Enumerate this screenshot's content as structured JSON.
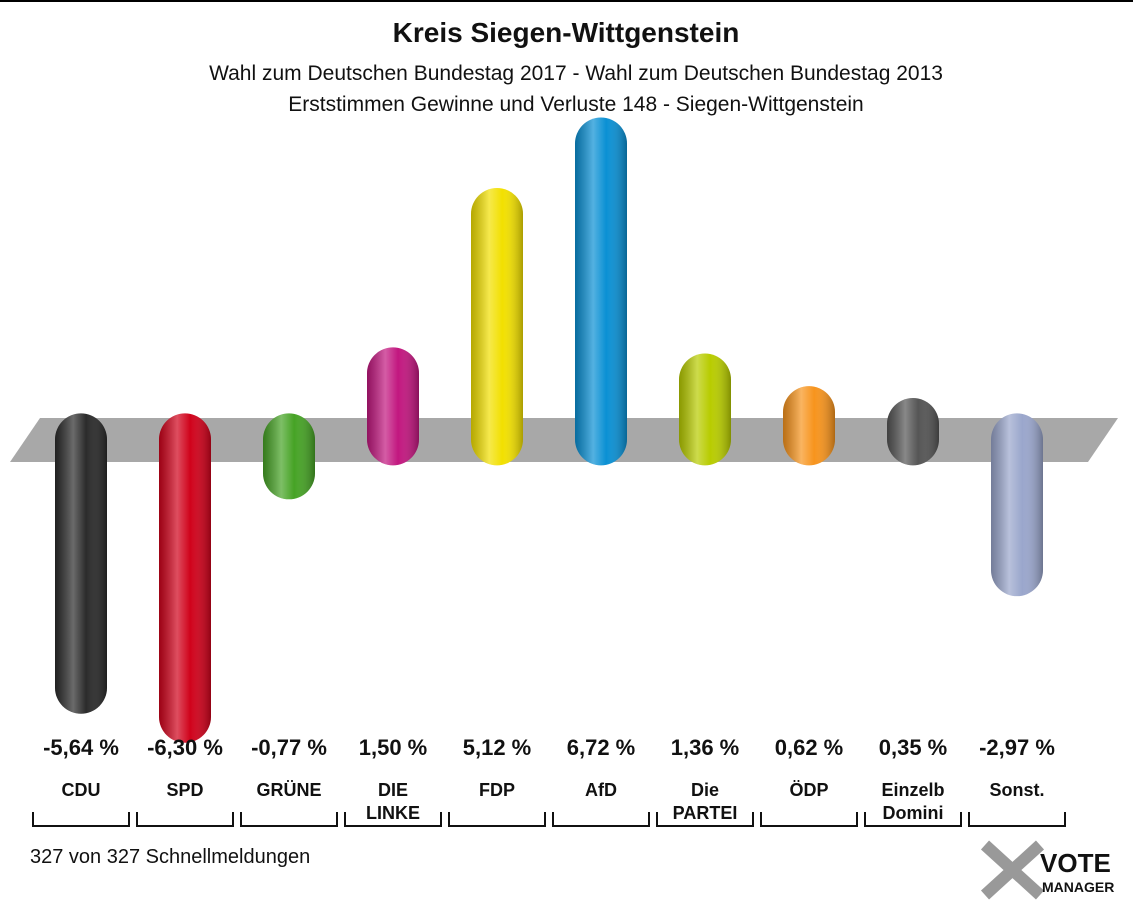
{
  "chart_data": {
    "type": "bar",
    "title": "Kreis Siegen-Wittgenstein",
    "subtitle": "Wahl zum Deutschen Bundestag 2017 - Wahl zum Deutschen Bundestag 2013",
    "subtitle2": "Erststimmen Gewinne und Verluste 148 - Siegen-Wittgenstein",
    "categories": [
      [
        "CDU"
      ],
      [
        "SPD"
      ],
      [
        "GRÜNE"
      ],
      [
        "DIE",
        "LINKE"
      ],
      [
        "FDP"
      ],
      [
        "AfD"
      ],
      [
        "Die",
        "PARTEI"
      ],
      [
        "ÖDP"
      ],
      [
        "Einzelb",
        "Domini"
      ],
      [
        "Sonst."
      ]
    ],
    "values": [
      -5.64,
      -6.3,
      -0.77,
      1.5,
      5.12,
      6.72,
      1.36,
      0.62,
      0.35,
      -2.97
    ],
    "value_labels": [
      "-5,64 %",
      "-6,30 %",
      "-0,77 %",
      "1,50 %",
      "5,12 %",
      "6,72 %",
      "1,36 %",
      "0,62 %",
      "0,35 %",
      "-2,97 %"
    ],
    "colors": [
      "#2b2b2b",
      "#d0021b",
      "#46a325",
      "#c2177f",
      "#f2e000",
      "#0a90d4",
      "#b8cc00",
      "#f7941d",
      "#555555",
      "#9aa6cc"
    ],
    "ylim": [
      -6.6,
      6.8
    ],
    "footer": "327 von 327 Schnellmeldungen",
    "logo": [
      "VOTE",
      "MANAGER"
    ]
  }
}
